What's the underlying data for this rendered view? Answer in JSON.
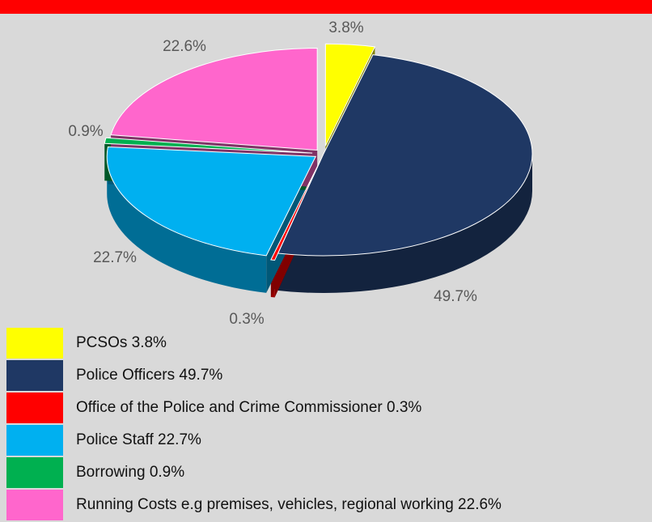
{
  "header": {
    "title": ""
  },
  "chart_data": {
    "type": "pie",
    "title": "",
    "slices": [
      {
        "label": "PCSOs",
        "value": 3.8,
        "color": "#ffff00",
        "pct_label": "3.8%",
        "legend": "PCSOs 3.8%"
      },
      {
        "label": "Police Officers",
        "value": 49.7,
        "color": "#1f3864",
        "pct_label": "49.7%",
        "legend": "Police Officers 49.7%"
      },
      {
        "label": "Office of the Police and Crime Commissioner",
        "value": 0.3,
        "color": "#ff0000",
        "pct_label": "0.3%",
        "legend": "Office of the Police and Crime Commissioner 0.3%"
      },
      {
        "label": "Police Staff",
        "value": 22.7,
        "color": "#00b0f0",
        "pct_label": "22.7%",
        "legend": "Police Staff 22.7%"
      },
      {
        "label": "Borrowing",
        "value": 0.9,
        "color": "#00b050",
        "pct_label": "0.9%",
        "legend": "Borrowing 0.9%"
      },
      {
        "label": "Running Costs e.g premises, vehicles, regional working",
        "value": 22.6,
        "color": "#ff66cc",
        "pct_label": "22.6%",
        "legend": "Running Costs e.g premises, vehicles, regional working 22.6%"
      }
    ],
    "legend_position": "bottom",
    "style": "3d-exploded"
  }
}
